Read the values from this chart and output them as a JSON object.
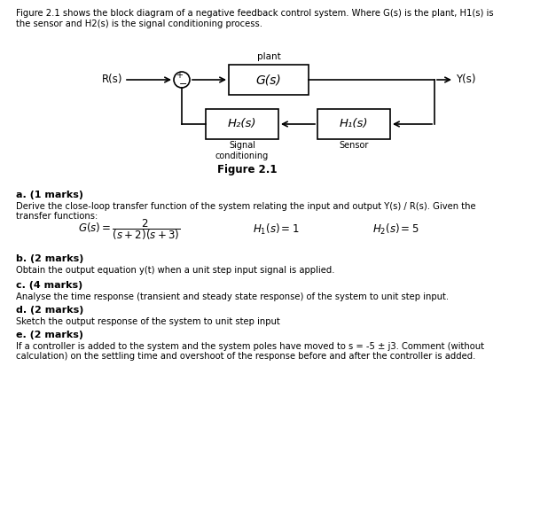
{
  "bg_color": "#ffffff",
  "text_color": "#000000",
  "header_line1": "Figure 2.1 shows the block diagram of a negative feedback control system. Where G(s) is the plant, H1(s) is",
  "header_line2": "the sensor and H2(s) is the signal conditioning process.",
  "plant_label": "plant",
  "gs_label": "G(s)",
  "ys_label": "Y(s)",
  "rs_label": "R(s)",
  "h1s_label": "H₁(s)",
  "h2s_label": "H₂(s)",
  "signal_cond_label": "Signal\nconditioning",
  "sensor_label": "Sensor",
  "fig_caption": "Figure 2.1",
  "sec_a_label": "a. (1 marks)",
  "sec_a_line1": "Derive the close-loop transfer function of the system relating the input and output Y(s) / R(s). Given the",
  "sec_a_line2": "transfer functions:",
  "sec_b_label": "b. (2 marks)",
  "sec_b_text": "Obtain the output equation y(t) when a unit step input signal is applied.",
  "sec_c_label": "c. (4 marks)",
  "sec_c_text": "Analyse the time response (transient and steady state response) of the system to unit step input.",
  "sec_d_label": "d. (2 marks)",
  "sec_d_text": "Sketch the output response of the system to unit step input",
  "sec_e_label": "e. (2 marks)",
  "sec_e_line1": "If a controller is added to the system and the system poles have moved to s = -5 ± j3. Comment (without",
  "sec_e_line2": "calculation) on the settling time and overshoot of the response before and after the controller is added."
}
